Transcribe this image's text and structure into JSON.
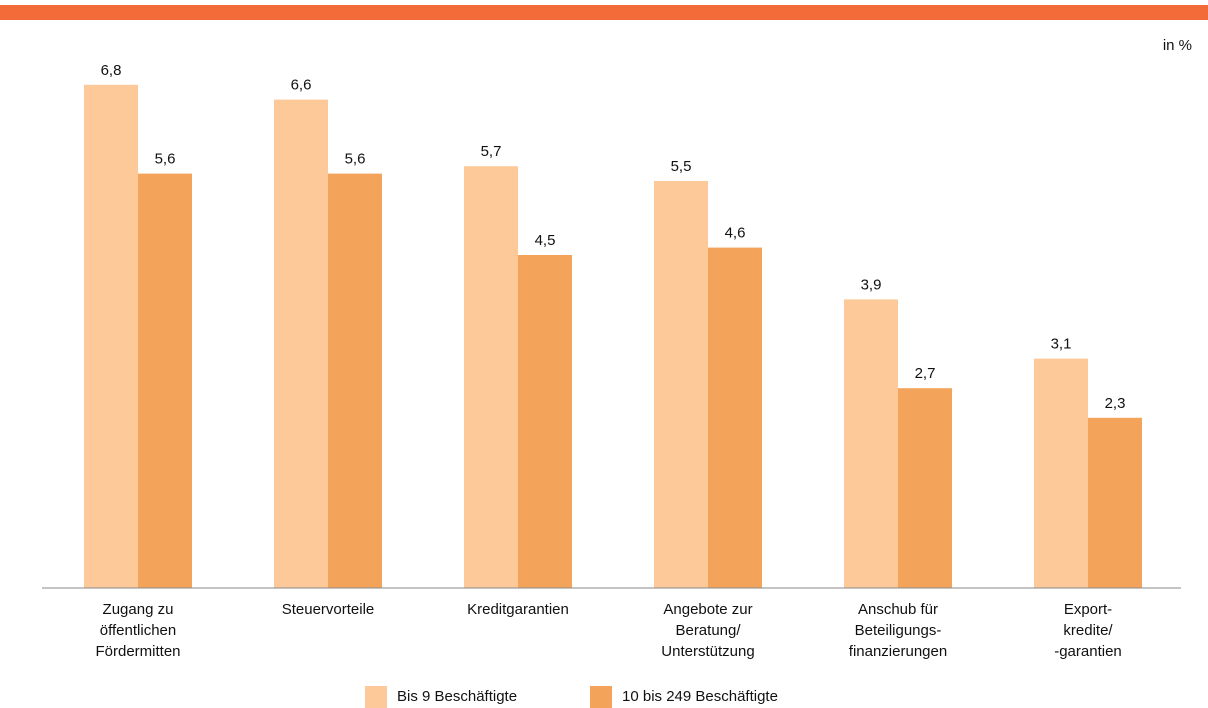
{
  "chart_data": {
    "type": "bar",
    "unit_label": "in %",
    "categories": [
      "Zugang zu\nöffentlichen\nFördermitten",
      "Steuervorteile",
      "Kreditgarantien",
      "Angebote zur\nBeratung/\nUnterstützung",
      "Anschub für\nBeteiligungs-\nfinanzierungen",
      "Export-\nkredite/\n-garantien"
    ],
    "series": [
      {
        "name": "Bis 9 Beschäftigte",
        "color": "#fdc998",
        "values": [
          6.8,
          6.6,
          5.7,
          5.5,
          3.9,
          3.1
        ],
        "value_labels": [
          "6,8",
          "6,6",
          "5,7",
          "5,5",
          "3,9",
          "3,1"
        ]
      },
      {
        "name": "10 bis 249 Beschäftigte",
        "color": "#f4a35a",
        "values": [
          5.6,
          5.6,
          4.5,
          4.6,
          2.7,
          2.3
        ],
        "value_labels": [
          "5,6",
          "5,6",
          "4,5",
          "4,6",
          "2,7",
          "2,3"
        ]
      }
    ],
    "ylim": [
      0,
      7.5
    ],
    "legend": "bottom"
  }
}
